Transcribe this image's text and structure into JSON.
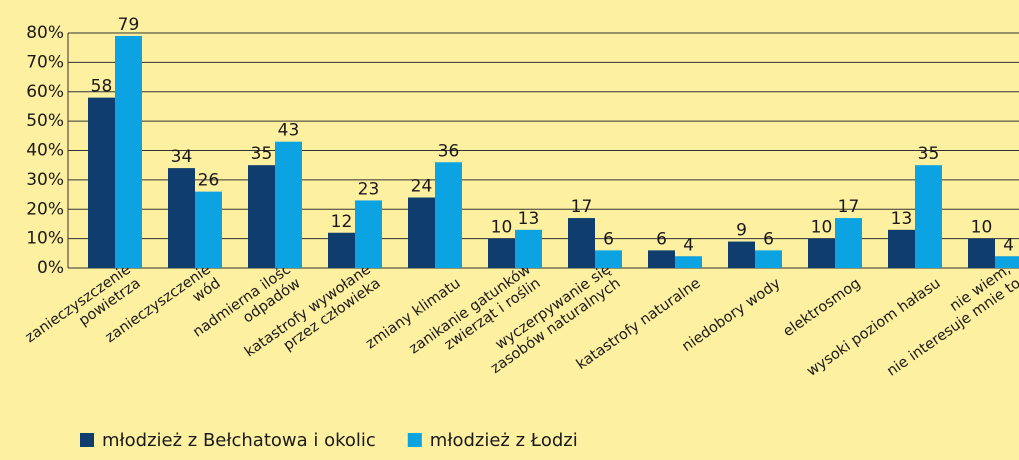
{
  "chart_data": {
    "type": "bar",
    "categories": [
      "zanieczyszczenie\npowietrza",
      "zanieczyszczenie\nwód",
      "nadmierna ilość\nodpadów",
      "katastrofy wywołane\nprzez człowieka",
      "zmiany klimatu",
      "zanikanie gatunków\nzwierząt i roślin",
      "wyczerpywanie się\nzasobów naturalnych",
      "katastrofy naturalne",
      "niedobory wody",
      "elektrosmog",
      "wysoki poziom hałasu",
      "nie wiem,\nnie interesuje mnie to"
    ],
    "series": [
      {
        "name": "młodzież z Bełchatowa i okolic",
        "color": "#0e3d6e",
        "values": [
          58,
          34,
          35,
          12,
          24,
          10,
          17,
          6,
          9,
          10,
          13,
          10
        ]
      },
      {
        "name": "młodzież z Łodzi",
        "color": "#0ba3e2",
        "values": [
          79,
          26,
          43,
          23,
          36,
          13,
          6,
          4,
          6,
          17,
          35,
          4
        ]
      }
    ],
    "ylim": [
      0,
      80
    ],
    "yticks": [
      {
        "value": 0,
        "label": "0%"
      },
      {
        "value": 10,
        "label": "10%"
      },
      {
        "value": 20,
        "label": "20%"
      },
      {
        "value": 30,
        "label": "30%"
      },
      {
        "value": 40,
        "label": "40%"
      },
      {
        "value": 50,
        "label": "50%"
      },
      {
        "value": 60,
        "label": "60%"
      },
      {
        "value": 70,
        "label": "70%"
      },
      {
        "value": 80,
        "label": "80%"
      }
    ],
    "grid": true,
    "legend": "bottom"
  }
}
